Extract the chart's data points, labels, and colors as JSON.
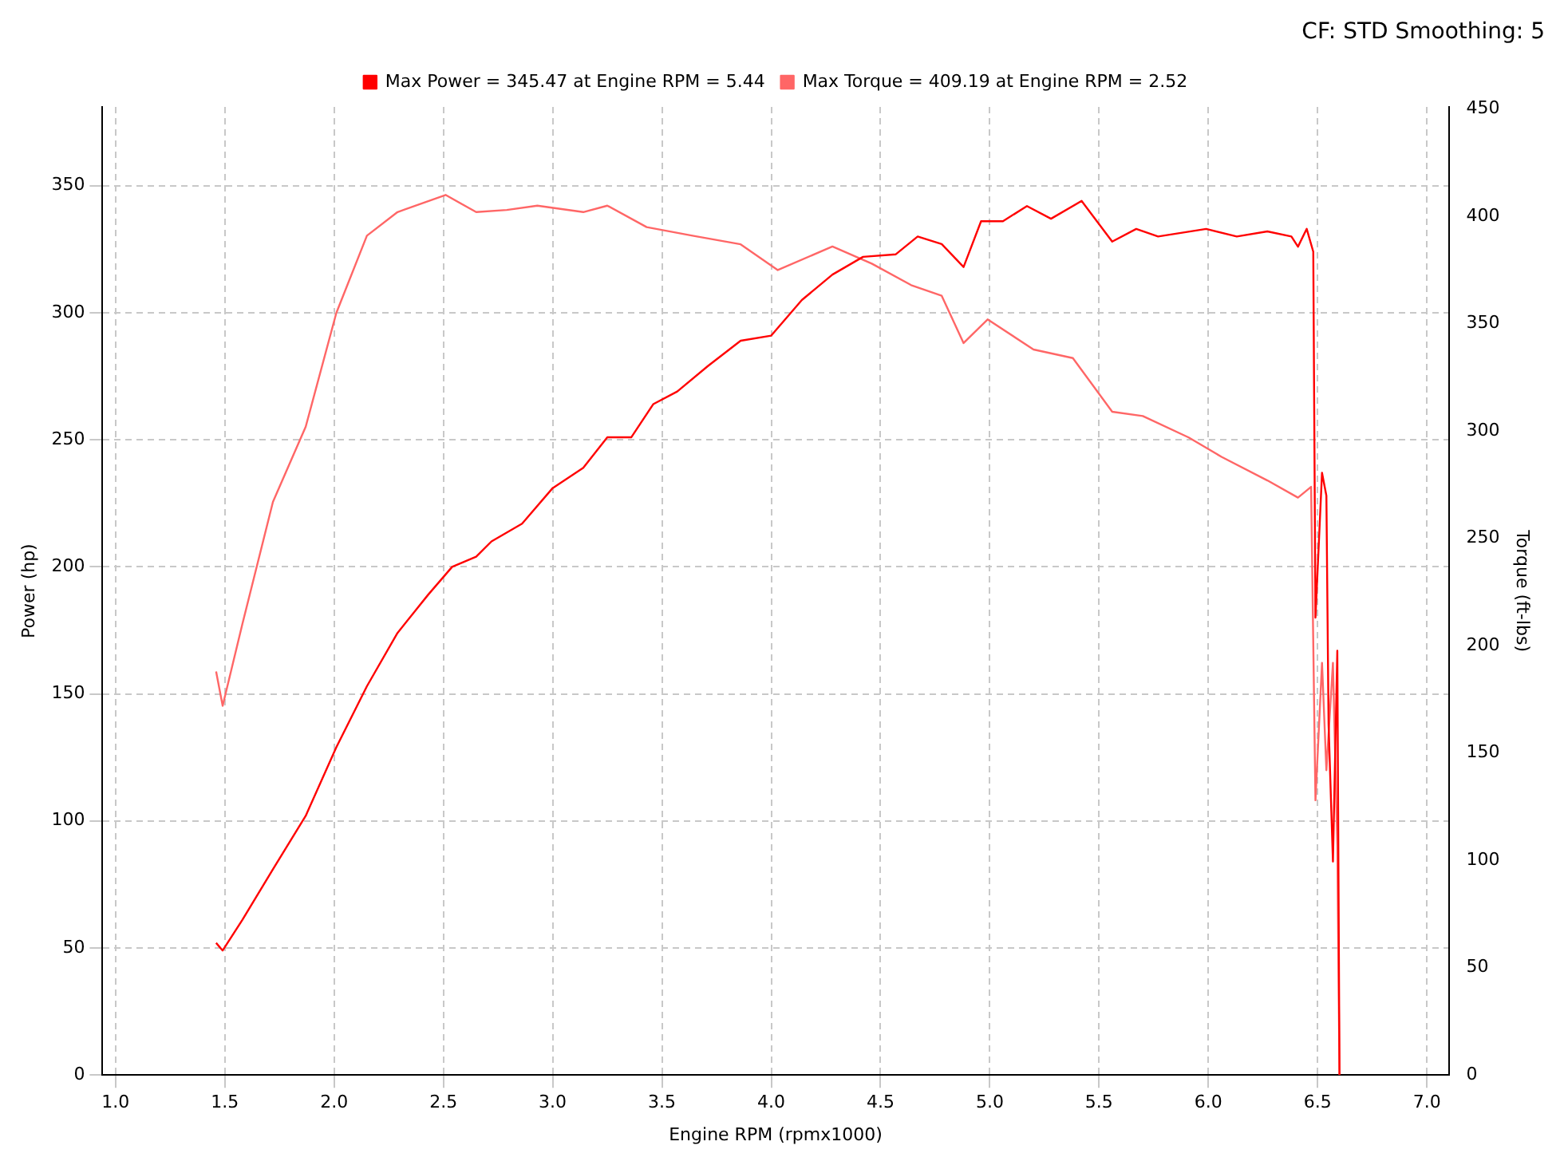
{
  "chart_data": {
    "type": "line",
    "annotations": [
      "CF: STD Smoothing: 5"
    ],
    "xlabel": "Engine RPM (rpmx1000)",
    "ylabel": "Power (hp)",
    "y2label": "Torque (ft-lbs)",
    "xlim": [
      0.94,
      7.1
    ],
    "xticks": [
      {
        "value": 1,
        "label": "1.0"
      },
      {
        "value": 1.5,
        "label": "1.5"
      },
      {
        "value": 2,
        "label": "2.0"
      },
      {
        "value": 2.5,
        "label": "2.5"
      },
      {
        "value": 3,
        "label": "3.0"
      },
      {
        "value": 3.5,
        "label": "3.5"
      },
      {
        "value": 4,
        "label": "4.0"
      },
      {
        "value": 4.5,
        "label": "4.5"
      },
      {
        "value": 5,
        "label": "5.0"
      },
      {
        "value": 5.5,
        "label": "5.5"
      },
      {
        "value": 6,
        "label": "6.0"
      },
      {
        "value": 6.5,
        "label": "6.5"
      },
      {
        "value": 7,
        "label": "7.0"
      }
    ],
    "ylim": [
      0,
      381
    ],
    "yticks": [
      0,
      50,
      100,
      150,
      200,
      250,
      300,
      350
    ],
    "y2lim": [
      0,
      451
    ],
    "y2ticks": [
      0,
      50,
      100,
      150,
      200,
      250,
      300,
      350,
      400,
      450
    ],
    "grid": true,
    "legend": "top",
    "marker": "none",
    "line_style": "solid",
    "series": [
      {
        "name": "Max Power = 345.47 at Engine RPM = 5.44",
        "color": "#ff0000",
        "x": [
          1.46,
          1.49,
          1.58,
          1.72,
          1.87,
          2.01,
          2.15,
          2.29,
          2.43,
          2.54,
          2.65,
          2.72,
          2.86,
          3.0,
          3.14,
          3.25,
          3.36,
          3.46,
          3.57,
          3.71,
          3.86,
          4.0,
          4.14,
          4.28,
          4.42,
          4.57,
          4.67,
          4.78,
          4.88,
          4.96,
          5.06,
          5.17,
          5.28,
          5.42,
          5.56,
          5.67,
          5.77,
          5.99,
          6.13,
          6.27,
          6.38,
          6.41,
          6.45,
          6.48,
          6.49,
          6.52,
          6.54,
          6.55,
          6.57,
          6.59,
          6.6
        ],
        "values": [
          52,
          49,
          61,
          81,
          102,
          129,
          153,
          174,
          189,
          200,
          204,
          210,
          217,
          231,
          239,
          251,
          251,
          264,
          269,
          279,
          289,
          291,
          305,
          315,
          322,
          323,
          330,
          327,
          318,
          336,
          336,
          342,
          337,
          344,
          328,
          333,
          330,
          333,
          330,
          332,
          330,
          326,
          333,
          324,
          180,
          237,
          228,
          138,
          84,
          167,
          0
        ]
      },
      {
        "name": "Max Torque = 409.19 at Engine RPM = 2.52",
        "color": "#ff6666",
        "axis": "y2",
        "x": [
          1.46,
          1.49,
          1.58,
          1.72,
          1.87,
          2.01,
          2.15,
          2.29,
          2.51,
          2.65,
          2.79,
          2.93,
          3.14,
          3.25,
          3.43,
          3.64,
          3.86,
          4.03,
          4.28,
          4.46,
          4.64,
          4.78,
          4.88,
          4.99,
          5.2,
          5.38,
          5.56,
          5.7,
          5.91,
          6.06,
          6.27,
          6.41,
          6.47,
          6.49,
          6.52,
          6.54,
          6.57,
          6.59,
          6.6
        ],
        "values": [
          188,
          172,
          210,
          267,
          302,
          355,
          391,
          402,
          410,
          402,
          403,
          405,
          402,
          405,
          395,
          391,
          387,
          375,
          386,
          378,
          368,
          363,
          341,
          352,
          338,
          334,
          309,
          307,
          297,
          288,
          277,
          269,
          274,
          128,
          192,
          142,
          192,
          107,
          0
        ]
      }
    ]
  }
}
